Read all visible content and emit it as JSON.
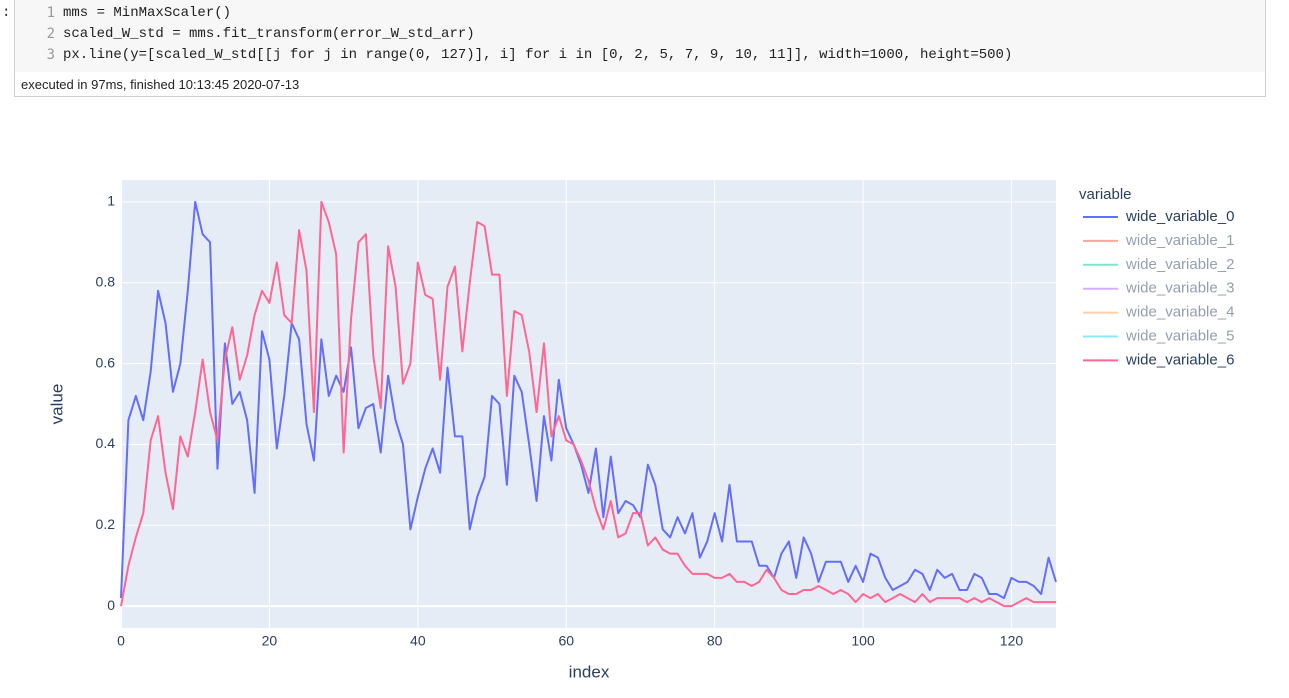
{
  "notebook": {
    "prompt": ":",
    "line_numbers": [
      "1",
      "2",
      "3"
    ],
    "lines": [
      "mms = MinMaxScaler()",
      "scaled_W_std = mms.fit_transform(error_W_std_arr)",
      "px.line(y=[scaled_W_std[[j for j in range(0, 127)], i] for i in [0, 2, 5, 7, 9, 10, 11]], width=1000, height=500)"
    ],
    "status": "executed in 97ms, finished 10:13:45 2020-07-13"
  },
  "chart_data": {
    "type": "line",
    "x_label": "index",
    "y_label": "value",
    "legend_title": "variable",
    "legend_position": "right",
    "grid": true,
    "xlim": [
      0,
      126
    ],
    "ylim": [
      -0.054,
      1.054
    ],
    "xticks": [
      0,
      20,
      40,
      60,
      80,
      100,
      120
    ],
    "yticks": [
      0,
      0.2,
      0.4,
      0.6,
      0.8,
      1
    ],
    "x": [
      0,
      1,
      2,
      3,
      4,
      5,
      6,
      7,
      8,
      9,
      10,
      11,
      12,
      13,
      14,
      15,
      16,
      17,
      18,
      19,
      20,
      21,
      22,
      23,
      24,
      25,
      26,
      27,
      28,
      29,
      30,
      31,
      32,
      33,
      34,
      35,
      36,
      37,
      38,
      39,
      40,
      41,
      42,
      43,
      44,
      45,
      46,
      47,
      48,
      49,
      50,
      51,
      52,
      53,
      54,
      55,
      56,
      57,
      58,
      59,
      60,
      61,
      62,
      63,
      64,
      65,
      66,
      67,
      68,
      69,
      70,
      71,
      72,
      73,
      74,
      75,
      76,
      77,
      78,
      79,
      80,
      81,
      82,
      83,
      84,
      85,
      86,
      87,
      88,
      89,
      90,
      91,
      92,
      93,
      94,
      95,
      96,
      97,
      98,
      99,
      100,
      101,
      102,
      103,
      104,
      105,
      106,
      107,
      108,
      109,
      110,
      111,
      112,
      113,
      114,
      115,
      116,
      117,
      118,
      119,
      120,
      121,
      122,
      123,
      124,
      125,
      126
    ],
    "series": [
      {
        "name": "wide_variable_0",
        "color": "#636efa",
        "visible": true,
        "values": [
          0.02,
          0.46,
          0.52,
          0.46,
          0.58,
          0.78,
          0.7,
          0.53,
          0.6,
          0.78,
          1.0,
          0.92,
          0.9,
          0.34,
          0.65,
          0.5,
          0.53,
          0.46,
          0.28,
          0.68,
          0.61,
          0.39,
          0.52,
          0.7,
          0.66,
          0.45,
          0.36,
          0.66,
          0.52,
          0.57,
          0.53,
          0.64,
          0.44,
          0.49,
          0.5,
          0.38,
          0.57,
          0.46,
          0.4,
          0.19,
          0.27,
          0.34,
          0.39,
          0.33,
          0.59,
          0.42,
          0.42,
          0.19,
          0.27,
          0.32,
          0.52,
          0.5,
          0.3,
          0.57,
          0.53,
          0.4,
          0.26,
          0.47,
          0.36,
          0.56,
          0.44,
          0.4,
          0.35,
          0.28,
          0.39,
          0.22,
          0.37,
          0.23,
          0.26,
          0.25,
          0.22,
          0.35,
          0.3,
          0.19,
          0.17,
          0.22,
          0.18,
          0.23,
          0.12,
          0.16,
          0.23,
          0.16,
          0.3,
          0.16,
          0.16,
          0.16,
          0.1,
          0.1,
          0.07,
          0.13,
          0.16,
          0.07,
          0.17,
          0.13,
          0.06,
          0.11,
          0.11,
          0.11,
          0.06,
          0.1,
          0.06,
          0.13,
          0.12,
          0.07,
          0.04,
          0.05,
          0.06,
          0.09,
          0.08,
          0.04,
          0.09,
          0.07,
          0.08,
          0.04,
          0.04,
          0.08,
          0.07,
          0.03,
          0.03,
          0.02,
          0.07,
          0.06,
          0.06,
          0.05,
          0.03,
          0.12,
          0.06
        ]
      },
      {
        "name": "wide_variable_1",
        "color": "#EF553B",
        "visible": false
      },
      {
        "name": "wide_variable_2",
        "color": "#00cc96",
        "visible": false
      },
      {
        "name": "wide_variable_3",
        "color": "#ab63fa",
        "visible": false
      },
      {
        "name": "wide_variable_4",
        "color": "#FFA15A",
        "visible": false
      },
      {
        "name": "wide_variable_5",
        "color": "#19d3f3",
        "visible": false
      },
      {
        "name": "wide_variable_6",
        "color": "#FF6692",
        "visible": true,
        "values": [
          0.0,
          0.1,
          0.17,
          0.23,
          0.41,
          0.47,
          0.33,
          0.24,
          0.42,
          0.37,
          0.48,
          0.61,
          0.48,
          0.41,
          0.61,
          0.69,
          0.56,
          0.62,
          0.72,
          0.78,
          0.75,
          0.85,
          0.72,
          0.7,
          0.93,
          0.83,
          0.48,
          1.0,
          0.95,
          0.87,
          0.38,
          0.71,
          0.9,
          0.92,
          0.62,
          0.49,
          0.89,
          0.79,
          0.55,
          0.6,
          0.85,
          0.77,
          0.76,
          0.56,
          0.79,
          0.84,
          0.63,
          0.8,
          0.95,
          0.94,
          0.82,
          0.82,
          0.52,
          0.73,
          0.72,
          0.63,
          0.48,
          0.65,
          0.42,
          0.47,
          0.41,
          0.4,
          0.36,
          0.31,
          0.24,
          0.19,
          0.26,
          0.17,
          0.18,
          0.23,
          0.23,
          0.15,
          0.17,
          0.14,
          0.13,
          0.13,
          0.1,
          0.08,
          0.08,
          0.08,
          0.07,
          0.07,
          0.08,
          0.06,
          0.06,
          0.05,
          0.06,
          0.09,
          0.07,
          0.04,
          0.03,
          0.03,
          0.04,
          0.04,
          0.05,
          0.04,
          0.03,
          0.04,
          0.03,
          0.01,
          0.03,
          0.02,
          0.03,
          0.01,
          0.02,
          0.03,
          0.02,
          0.01,
          0.03,
          0.01,
          0.02,
          0.02,
          0.02,
          0.02,
          0.01,
          0.02,
          0.01,
          0.02,
          0.01,
          0.0,
          0.0,
          0.01,
          0.02,
          0.01,
          0.01,
          0.01,
          0.01
        ]
      }
    ]
  }
}
